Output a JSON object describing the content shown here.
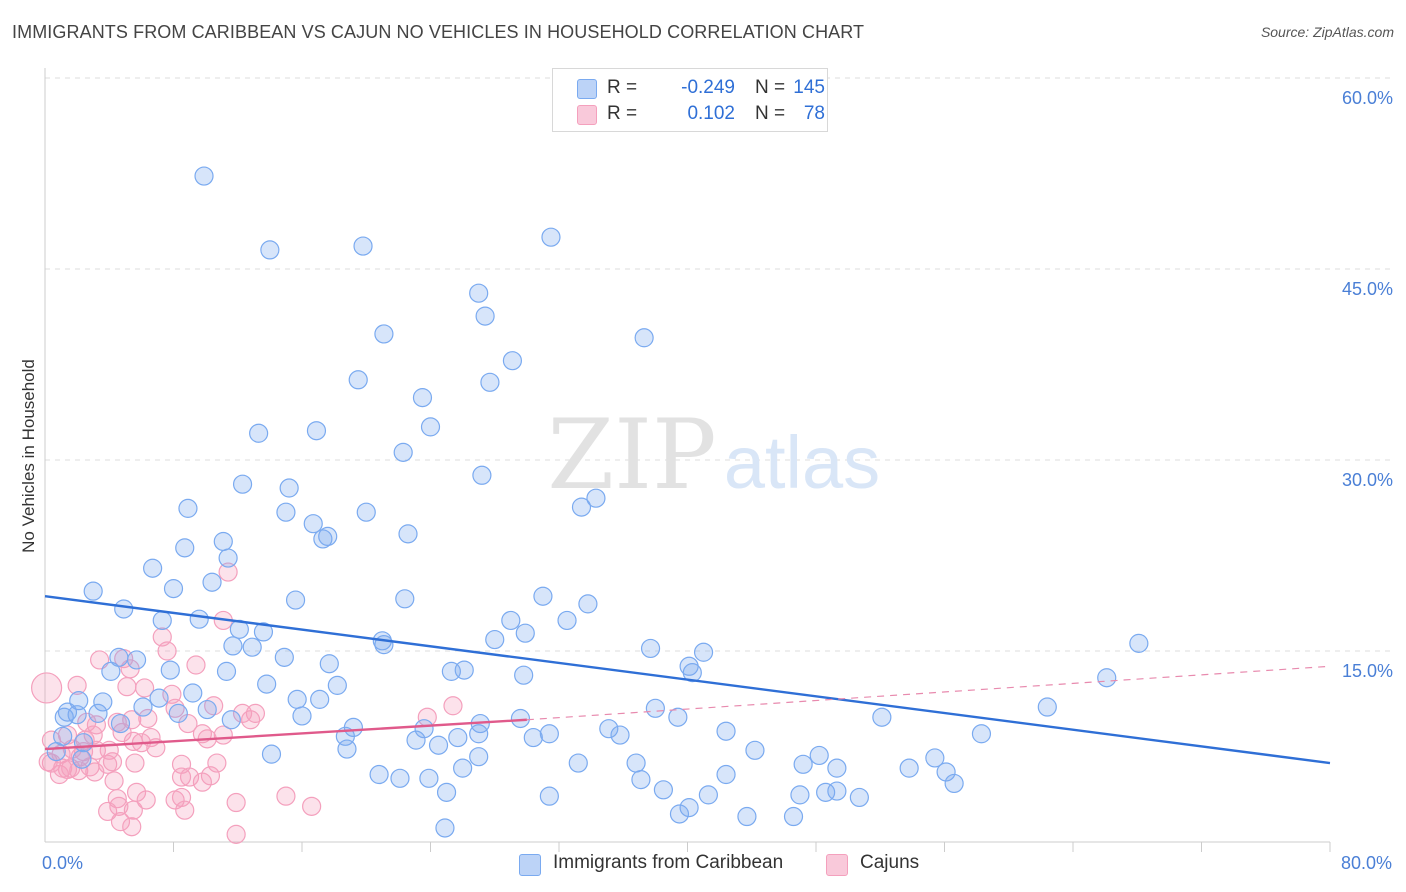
{
  "header": {
    "title": "IMMIGRANTS FROM CARIBBEAN VS CAJUN NO VEHICLES IN HOUSEHOLD CORRELATION CHART",
    "source": "Source: ZipAtlas.com"
  },
  "watermark": {
    "zip": "ZIP",
    "atlas": "atlas"
  },
  "legend": {
    "r_label": "R =",
    "n_label": "N =",
    "series": [
      {
        "name": "Immigrants from Caribbean",
        "r": "-0.249",
        "n": "145",
        "color": "#7aaaf0"
      },
      {
        "name": "Cajuns",
        "r": "0.102",
        "n": "78",
        "color": "#f4a0bd"
      }
    ]
  },
  "chart_data": {
    "type": "scatter",
    "title": "IMMIGRANTS FROM CARIBBEAN VS CAJUN NO VEHICLES IN HOUSEHOLD CORRELATION CHART",
    "xlabel": "",
    "ylabel": "No Vehicles in Household",
    "xlim": [
      0,
      80
    ],
    "ylim": [
      0,
      60
    ],
    "y_ticks": [
      {
        "value": 15,
        "label": "15.0%"
      },
      {
        "value": 30,
        "label": "30.0%"
      },
      {
        "value": 45,
        "label": "45.0%"
      },
      {
        "value": 60,
        "label": "60.0%"
      }
    ],
    "x_ticks": [
      {
        "value": 0,
        "label": "0.0%"
      },
      {
        "value": 80,
        "label": "80.0%"
      }
    ],
    "x_minor_ticks": [
      8,
      16,
      24,
      32,
      40,
      48,
      56,
      64,
      72,
      80
    ],
    "grid": true,
    "series": [
      {
        "name": "Immigrants from Caribbean",
        "color": "#7aaaf0",
        "trend": {
          "x": [
            0,
            80
          ],
          "y": [
            19.3,
            6.2
          ],
          "style": "solid"
        },
        "points": [
          [
            9.9,
            52.3
          ],
          [
            14,
            46.5
          ],
          [
            19.8,
            46.8
          ],
          [
            31.5,
            47.5
          ],
          [
            27,
            43.1
          ],
          [
            27.4,
            41.3
          ],
          [
            37.3,
            39.6
          ],
          [
            21.1,
            39.9
          ],
          [
            29.1,
            37.8
          ],
          [
            19.5,
            36.3
          ],
          [
            27.7,
            36.1
          ],
          [
            23.5,
            34.9
          ],
          [
            13.3,
            32.1
          ],
          [
            16.9,
            32.3
          ],
          [
            24,
            32.6
          ],
          [
            22.3,
            30.6
          ],
          [
            27.2,
            28.8
          ],
          [
            12.3,
            28.1
          ],
          [
            15.2,
            27.8
          ],
          [
            34.3,
            27
          ],
          [
            33.4,
            26.3
          ],
          [
            8.9,
            26.2
          ],
          [
            15,
            25.9
          ],
          [
            20,
            25.9
          ],
          [
            16.7,
            25
          ],
          [
            17.3,
            23.8
          ],
          [
            17.6,
            24
          ],
          [
            22.6,
            24.2
          ],
          [
            11.1,
            23.6
          ],
          [
            8.7,
            23.1
          ],
          [
            11.4,
            22.3
          ],
          [
            6.7,
            21.5
          ],
          [
            10.4,
            20.4
          ],
          [
            3,
            19.7
          ],
          [
            8,
            19.9
          ],
          [
            15.6,
            19
          ],
          [
            22.4,
            19.1
          ],
          [
            31,
            19.3
          ],
          [
            33.8,
            18.7
          ],
          [
            4.9,
            18.3
          ],
          [
            7.3,
            17.4
          ],
          [
            9.6,
            17.5
          ],
          [
            29,
            17.4
          ],
          [
            32.5,
            17.4
          ],
          [
            13.6,
            16.5
          ],
          [
            12.1,
            16.7
          ],
          [
            29.9,
            16.4
          ],
          [
            21,
            15.8
          ],
          [
            28,
            15.9
          ],
          [
            21.1,
            15.5
          ],
          [
            11.7,
            15.4
          ],
          [
            12.9,
            15.3
          ],
          [
            37.7,
            15.2
          ],
          [
            41,
            14.9
          ],
          [
            4.6,
            14.5
          ],
          [
            14.9,
            14.5
          ],
          [
            5.7,
            14.3
          ],
          [
            17.7,
            14
          ],
          [
            40.1,
            13.8
          ],
          [
            25.3,
            13.4
          ],
          [
            4.1,
            13.4
          ],
          [
            11.3,
            13.4
          ],
          [
            7.8,
            13.5
          ],
          [
            26.1,
            13.5
          ],
          [
            40.3,
            13.3
          ],
          [
            29.8,
            13.1
          ],
          [
            68.1,
            15.6
          ],
          [
            66.1,
            12.9
          ],
          [
            13.8,
            12.4
          ],
          [
            18.2,
            12.3
          ],
          [
            2.1,
            11.1
          ],
          [
            3.6,
            11
          ],
          [
            9.2,
            11.7
          ],
          [
            7.1,
            11.3
          ],
          [
            15.7,
            11.2
          ],
          [
            17.1,
            11.2
          ],
          [
            6.1,
            10.6
          ],
          [
            1.4,
            10.2
          ],
          [
            10.1,
            10.4
          ],
          [
            8.3,
            10.1
          ],
          [
            16,
            9.9
          ],
          [
            2,
            10
          ],
          [
            3.3,
            10.1
          ],
          [
            38,
            10.5
          ],
          [
            39.4,
            9.8
          ],
          [
            52.1,
            9.8
          ],
          [
            62.4,
            10.6
          ],
          [
            11.6,
            9.6
          ],
          [
            29.6,
            9.7
          ],
          [
            27.1,
            9.3
          ],
          [
            19.2,
            9
          ],
          [
            23.6,
            8.9
          ],
          [
            27,
            8.5
          ],
          [
            30.4,
            8.2
          ],
          [
            31.4,
            8.5
          ],
          [
            35.1,
            8.9
          ],
          [
            35.8,
            8.4
          ],
          [
            42.4,
            8.7
          ],
          [
            58.3,
            8.5
          ],
          [
            1.1,
            8.3
          ],
          [
            2.4,
            7.8
          ],
          [
            18.7,
            8.3
          ],
          [
            23.1,
            8
          ],
          [
            24.5,
            7.6
          ],
          [
            25.7,
            8.2
          ],
          [
            18.8,
            7.3
          ],
          [
            0.7,
            7.1
          ],
          [
            27,
            6.7
          ],
          [
            44.2,
            7.2
          ],
          [
            48.2,
            6.8
          ],
          [
            55.4,
            6.6
          ],
          [
            26,
            5.8
          ],
          [
            33.2,
            6.2
          ],
          [
            36.8,
            6.2
          ],
          [
            47.2,
            6.1
          ],
          [
            49.3,
            5.8
          ],
          [
            53.8,
            5.8
          ],
          [
            56.1,
            5.5
          ],
          [
            20.8,
            5.3
          ],
          [
            22.1,
            5
          ],
          [
            23.9,
            5
          ],
          [
            37.1,
            4.9
          ],
          [
            42.4,
            5.3
          ],
          [
            56.6,
            4.6
          ],
          [
            25,
            3.9
          ],
          [
            31.4,
            3.6
          ],
          [
            38.5,
            4.1
          ],
          [
            41.3,
            3.7
          ],
          [
            47,
            3.7
          ],
          [
            48.6,
            3.9
          ],
          [
            49.3,
            4
          ],
          [
            50.7,
            3.5
          ],
          [
            40.1,
            2.7
          ],
          [
            39.5,
            2.2
          ],
          [
            43.7,
            2
          ],
          [
            46.6,
            2
          ],
          [
            24.9,
            1.1
          ],
          [
            1.2,
            9.8
          ],
          [
            4.7,
            9.3
          ],
          [
            2.3,
            6.5
          ],
          [
            14.1,
            6.9
          ]
        ]
      },
      {
        "name": "Cajuns",
        "color": "#f4a0bd",
        "trend": {
          "x": [
            0,
            30
          ],
          "y": [
            7.3,
            9.6
          ],
          "style": "solid"
        },
        "trend_extension": {
          "x": [
            30,
            80
          ],
          "y": [
            9.6,
            13.8
          ],
          "style": "dashed"
        },
        "points": [
          [
            0.1,
            12.1
          ],
          [
            11.4,
            21.2
          ],
          [
            7.3,
            16.1
          ],
          [
            7.6,
            15
          ],
          [
            11.1,
            17.4
          ],
          [
            3.4,
            14.3
          ],
          [
            4.9,
            14.4
          ],
          [
            9.4,
            13.9
          ],
          [
            5.3,
            13.6
          ],
          [
            2,
            12.3
          ],
          [
            5.1,
            12.2
          ],
          [
            6.2,
            12.1
          ],
          [
            7.9,
            11.6
          ],
          [
            10.5,
            10.7
          ],
          [
            12.3,
            10.1
          ],
          [
            13.1,
            10.1
          ],
          [
            25.4,
            10.7
          ],
          [
            8.1,
            10.5
          ],
          [
            5.4,
            9.6
          ],
          [
            6.4,
            9.7
          ],
          [
            12.8,
            9.6
          ],
          [
            23.8,
            9.8
          ],
          [
            2.6,
            9.4
          ],
          [
            3.2,
            9.2
          ],
          [
            4.5,
            9.4
          ],
          [
            8.9,
            9.3
          ],
          [
            1.4,
            8.4
          ],
          [
            3,
            8.4
          ],
          [
            4.8,
            8.6
          ],
          [
            6.6,
            8.2
          ],
          [
            9.8,
            8.5
          ],
          [
            11.1,
            8.4
          ],
          [
            0.4,
            8
          ],
          [
            2.5,
            8
          ],
          [
            5.5,
            7.9
          ],
          [
            6,
            7.8
          ],
          [
            10.1,
            8.1
          ],
          [
            1.7,
            7.3
          ],
          [
            2.4,
            7.1
          ],
          [
            3.2,
            7.2
          ],
          [
            4,
            7.2
          ],
          [
            6.9,
            7.4
          ],
          [
            1,
            6.9
          ],
          [
            2.2,
            6.7
          ],
          [
            3.9,
            6.1
          ],
          [
            4.2,
            6.3
          ],
          [
            5.6,
            6.2
          ],
          [
            8.5,
            6.1
          ],
          [
            10.7,
            6.2
          ],
          [
            0.4,
            6.2
          ],
          [
            1.4,
            5.7
          ],
          [
            2.1,
            5.6
          ],
          [
            2.8,
            5.9
          ],
          [
            3.1,
            5.5
          ],
          [
            0.9,
            5.3
          ],
          [
            8.5,
            5.1
          ],
          [
            9,
            5.1
          ],
          [
            10.3,
            5.2
          ],
          [
            4.3,
            4.8
          ],
          [
            9.8,
            4.7
          ],
          [
            1.6,
            5.8
          ],
          [
            5.7,
            3.9
          ],
          [
            8.1,
            3.3
          ],
          [
            8.5,
            3.5
          ],
          [
            4.5,
            3.4
          ],
          [
            15,
            3.6
          ],
          [
            11.9,
            3.1
          ],
          [
            16.6,
            2.8
          ],
          [
            4.6,
            2.8
          ],
          [
            6.3,
            3.3
          ],
          [
            8.7,
            2.5
          ],
          [
            3.9,
            2.4
          ],
          [
            5.5,
            2.5
          ],
          [
            4.7,
            1.6
          ],
          [
            5.4,
            1.2
          ],
          [
            11.9,
            0.6
          ],
          [
            0.2,
            6.3
          ],
          [
            1.1,
            5.8
          ]
        ]
      }
    ]
  }
}
